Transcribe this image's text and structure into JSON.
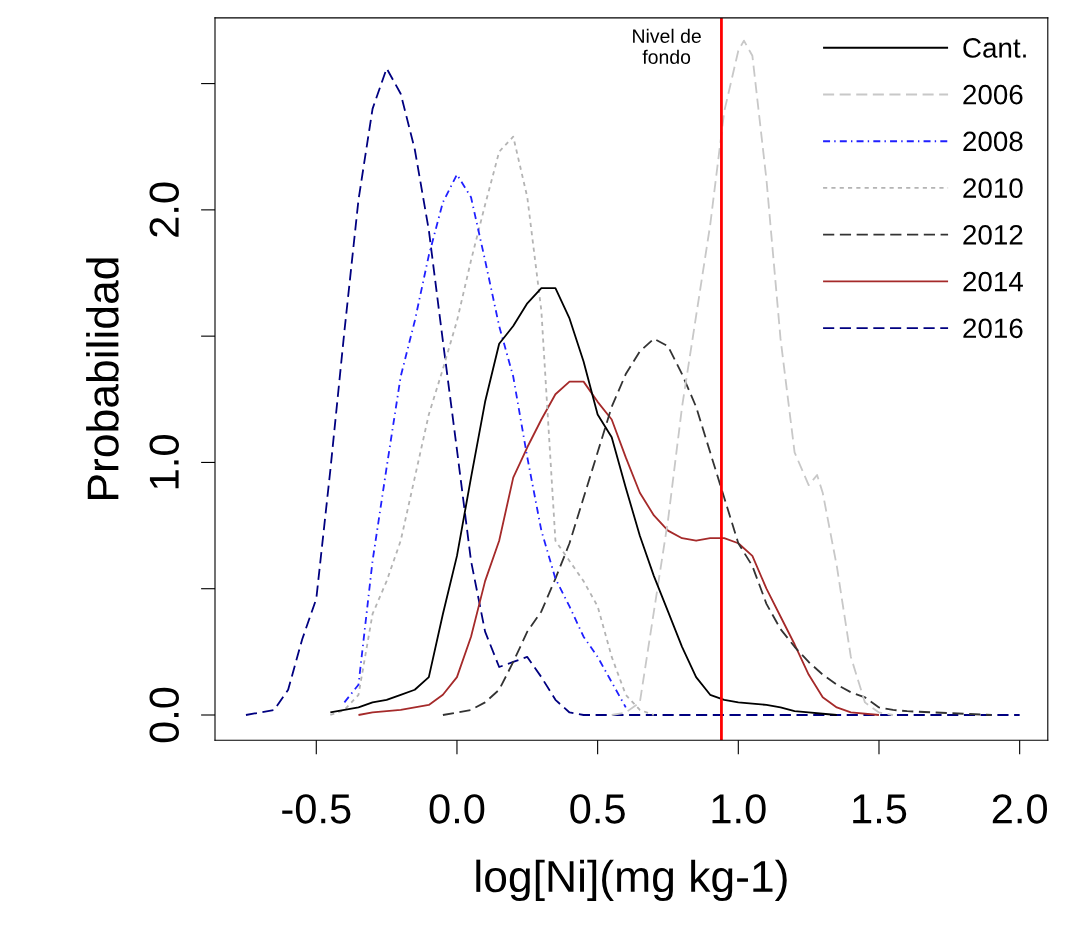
{
  "chart_data": {
    "type": "line",
    "xlabel": "log[Ni](mg kg-1)",
    "ylabel": "Probabilidad",
    "xlim": [
      -0.86,
      2.1
    ],
    "ylim": [
      -0.1,
      2.76
    ],
    "xticks": [
      {
        "value": -0.5,
        "label": "-0.5"
      },
      {
        "value": 0,
        "label": "0.0"
      },
      {
        "value": 0.5,
        "label": "0.5"
      },
      {
        "value": 1,
        "label": "1.0"
      },
      {
        "value": 1.5,
        "label": "1.5"
      },
      {
        "value": 2,
        "label": "2.0"
      }
    ],
    "yticks": [
      {
        "value": 0,
        "label": "0.0"
      },
      {
        "value": 0.5,
        "label": null
      },
      {
        "value": 1,
        "label": "1.0"
      },
      {
        "value": 1.5,
        "label": null
      },
      {
        "value": 2,
        "label": "2.0"
      },
      {
        "value": 2.5,
        "label": null
      }
    ],
    "grid": false,
    "legend": "top right",
    "marker": "none",
    "ref_lines": [
      {
        "axis": "x",
        "value": 0.94,
        "label": "Nivel de\nfondo",
        "color": "#ff0000",
        "line_style": "solid"
      }
    ],
    "series": [
      {
        "name": "Cant.",
        "color": "#000000",
        "line_style": "solid",
        "x": [
          -0.45,
          -0.4,
          -0.35,
          -0.3,
          -0.25,
          -0.2,
          -0.15,
          -0.1,
          -0.05,
          0,
          0.05,
          0.1,
          0.15,
          0.2,
          0.25,
          0.3,
          0.35,
          0.4,
          0.45,
          0.5,
          0.55,
          0.6,
          0.65,
          0.7,
          0.75,
          0.8,
          0.85,
          0.9,
          0.95,
          1.0,
          1.05,
          1.1,
          1.15,
          1.2,
          1.25,
          1.3,
          1.35
        ],
        "values": [
          0.01,
          0.02,
          0.03,
          0.05,
          0.06,
          0.08,
          0.1,
          0.15,
          0.4,
          0.63,
          0.94,
          1.24,
          1.47,
          1.54,
          1.63,
          1.69,
          1.69,
          1.57,
          1.4,
          1.19,
          1.1,
          0.9,
          0.71,
          0.55,
          0.41,
          0.27,
          0.15,
          0.08,
          0.06,
          0.05,
          0.045,
          0.04,
          0.03,
          0.015,
          0.01,
          0.005,
          0
        ]
      },
      {
        "name": "2006",
        "color": "#c8c8c8",
        "line_style": "dashed",
        "x": [
          0.55,
          0.6,
          0.65,
          0.7,
          0.75,
          0.8,
          0.85,
          0.9,
          0.95,
          1.0,
          1.02,
          1.05,
          1.1,
          1.15,
          1.2,
          1.25,
          1.28,
          1.3,
          1.35,
          1.4,
          1.45,
          1.5,
          1.55
        ],
        "values": [
          0,
          0.01,
          0.05,
          0.41,
          0.77,
          1.22,
          1.58,
          1.94,
          2.39,
          2.63,
          2.67,
          2.61,
          2.12,
          1.49,
          1.04,
          0.91,
          0.95,
          0.88,
          0.59,
          0.23,
          0.05,
          0.01,
          0
        ]
      },
      {
        "name": "2008",
        "color": "#2020ff",
        "line_style": "dashdot",
        "x": [
          -0.4,
          -0.35,
          -0.3,
          -0.25,
          -0.2,
          -0.15,
          -0.1,
          -0.05,
          0,
          0.05,
          0.1,
          0.15,
          0.2,
          0.25,
          0.3,
          0.35,
          0.4,
          0.45,
          0.5,
          0.55,
          0.6
        ],
        "values": [
          0.05,
          0.12,
          0.61,
          0.98,
          1.34,
          1.56,
          1.82,
          2.03,
          2.14,
          2.05,
          1.8,
          1.54,
          1.34,
          1.02,
          0.73,
          0.54,
          0.43,
          0.31,
          0.23,
          0.13,
          0.03
        ]
      },
      {
        "name": "2010",
        "color": "#b4b4b4",
        "line_style": "dotted",
        "x": [
          -0.45,
          -0.4,
          -0.35,
          -0.3,
          -0.25,
          -0.2,
          -0.15,
          -0.1,
          -0.05,
          0,
          0.05,
          0.1,
          0.15,
          0.2,
          0.25,
          0.3,
          0.35,
          0.4,
          0.45,
          0.5,
          0.55,
          0.6,
          0.65,
          0.7
        ],
        "values": [
          0,
          0.02,
          0.08,
          0.4,
          0.53,
          0.69,
          0.94,
          1.19,
          1.37,
          1.56,
          1.8,
          2.02,
          2.23,
          2.29,
          2.05,
          1.6,
          0.69,
          0.61,
          0.53,
          0.43,
          0.23,
          0.08,
          0.02,
          0
        ]
      },
      {
        "name": "2012",
        "color": "#333333",
        "line_style": "dashed",
        "x": [
          -0.05,
          0,
          0.05,
          0.1,
          0.15,
          0.2,
          0.25,
          0.3,
          0.35,
          0.4,
          0.45,
          0.5,
          0.55,
          0.6,
          0.65,
          0.7,
          0.75,
          0.8,
          0.85,
          0.9,
          0.95,
          1.0,
          1.05,
          1.1,
          1.15,
          1.2,
          1.25,
          1.3,
          1.35,
          1.4,
          1.45,
          1.5,
          1.55,
          1.6,
          1.7,
          1.8,
          1.9
        ],
        "values": [
          0,
          0.01,
          0.02,
          0.05,
          0.1,
          0.21,
          0.33,
          0.41,
          0.54,
          0.68,
          0.86,
          1.04,
          1.22,
          1.35,
          1.44,
          1.49,
          1.46,
          1.35,
          1.22,
          1.04,
          0.86,
          0.68,
          0.59,
          0.44,
          0.34,
          0.27,
          0.21,
          0.16,
          0.12,
          0.09,
          0.07,
          0.03,
          0.02,
          0.015,
          0.01,
          0.005,
          0
        ]
      },
      {
        "name": "2014",
        "color": "#a52a2a",
        "line_style": "solid",
        "x": [
          -0.35,
          -0.3,
          -0.2,
          -0.1,
          -0.05,
          0,
          0.05,
          0.1,
          0.15,
          0.2,
          0.25,
          0.3,
          0.35,
          0.4,
          0.45,
          0.5,
          0.55,
          0.6,
          0.65,
          0.7,
          0.75,
          0.8,
          0.85,
          0.9,
          0.95,
          1.0,
          1.05,
          1.1,
          1.15,
          1.2,
          1.25,
          1.3,
          1.35,
          1.4,
          1.5
        ],
        "values": [
          0,
          0.01,
          0.02,
          0.04,
          0.08,
          0.15,
          0.31,
          0.53,
          0.69,
          0.94,
          1.06,
          1.17,
          1.27,
          1.32,
          1.32,
          1.24,
          1.17,
          1.02,
          0.88,
          0.79,
          0.73,
          0.7,
          0.69,
          0.7,
          0.7,
          0.68,
          0.63,
          0.5,
          0.39,
          0.28,
          0.16,
          0.07,
          0.03,
          0.01,
          0
        ]
      },
      {
        "name": "2016",
        "color": "#000080",
        "line_style": "dashed",
        "x": [
          -0.75,
          -0.65,
          -0.6,
          -0.55,
          -0.5,
          -0.45,
          -0.4,
          -0.35,
          -0.3,
          -0.25,
          -0.2,
          -0.15,
          -0.1,
          -0.05,
          0,
          0.05,
          0.1,
          0.15,
          0.2,
          0.25,
          0.3,
          0.35,
          0.4,
          0.45,
          2.0
        ],
        "values": [
          0,
          0.02,
          0.1,
          0.3,
          0.46,
          0.97,
          1.52,
          2.04,
          2.4,
          2.56,
          2.46,
          2.24,
          1.92,
          1.48,
          1.05,
          0.61,
          0.33,
          0.19,
          0.21,
          0.23,
          0.15,
          0.06,
          0.01,
          0,
          0
        ]
      }
    ]
  }
}
